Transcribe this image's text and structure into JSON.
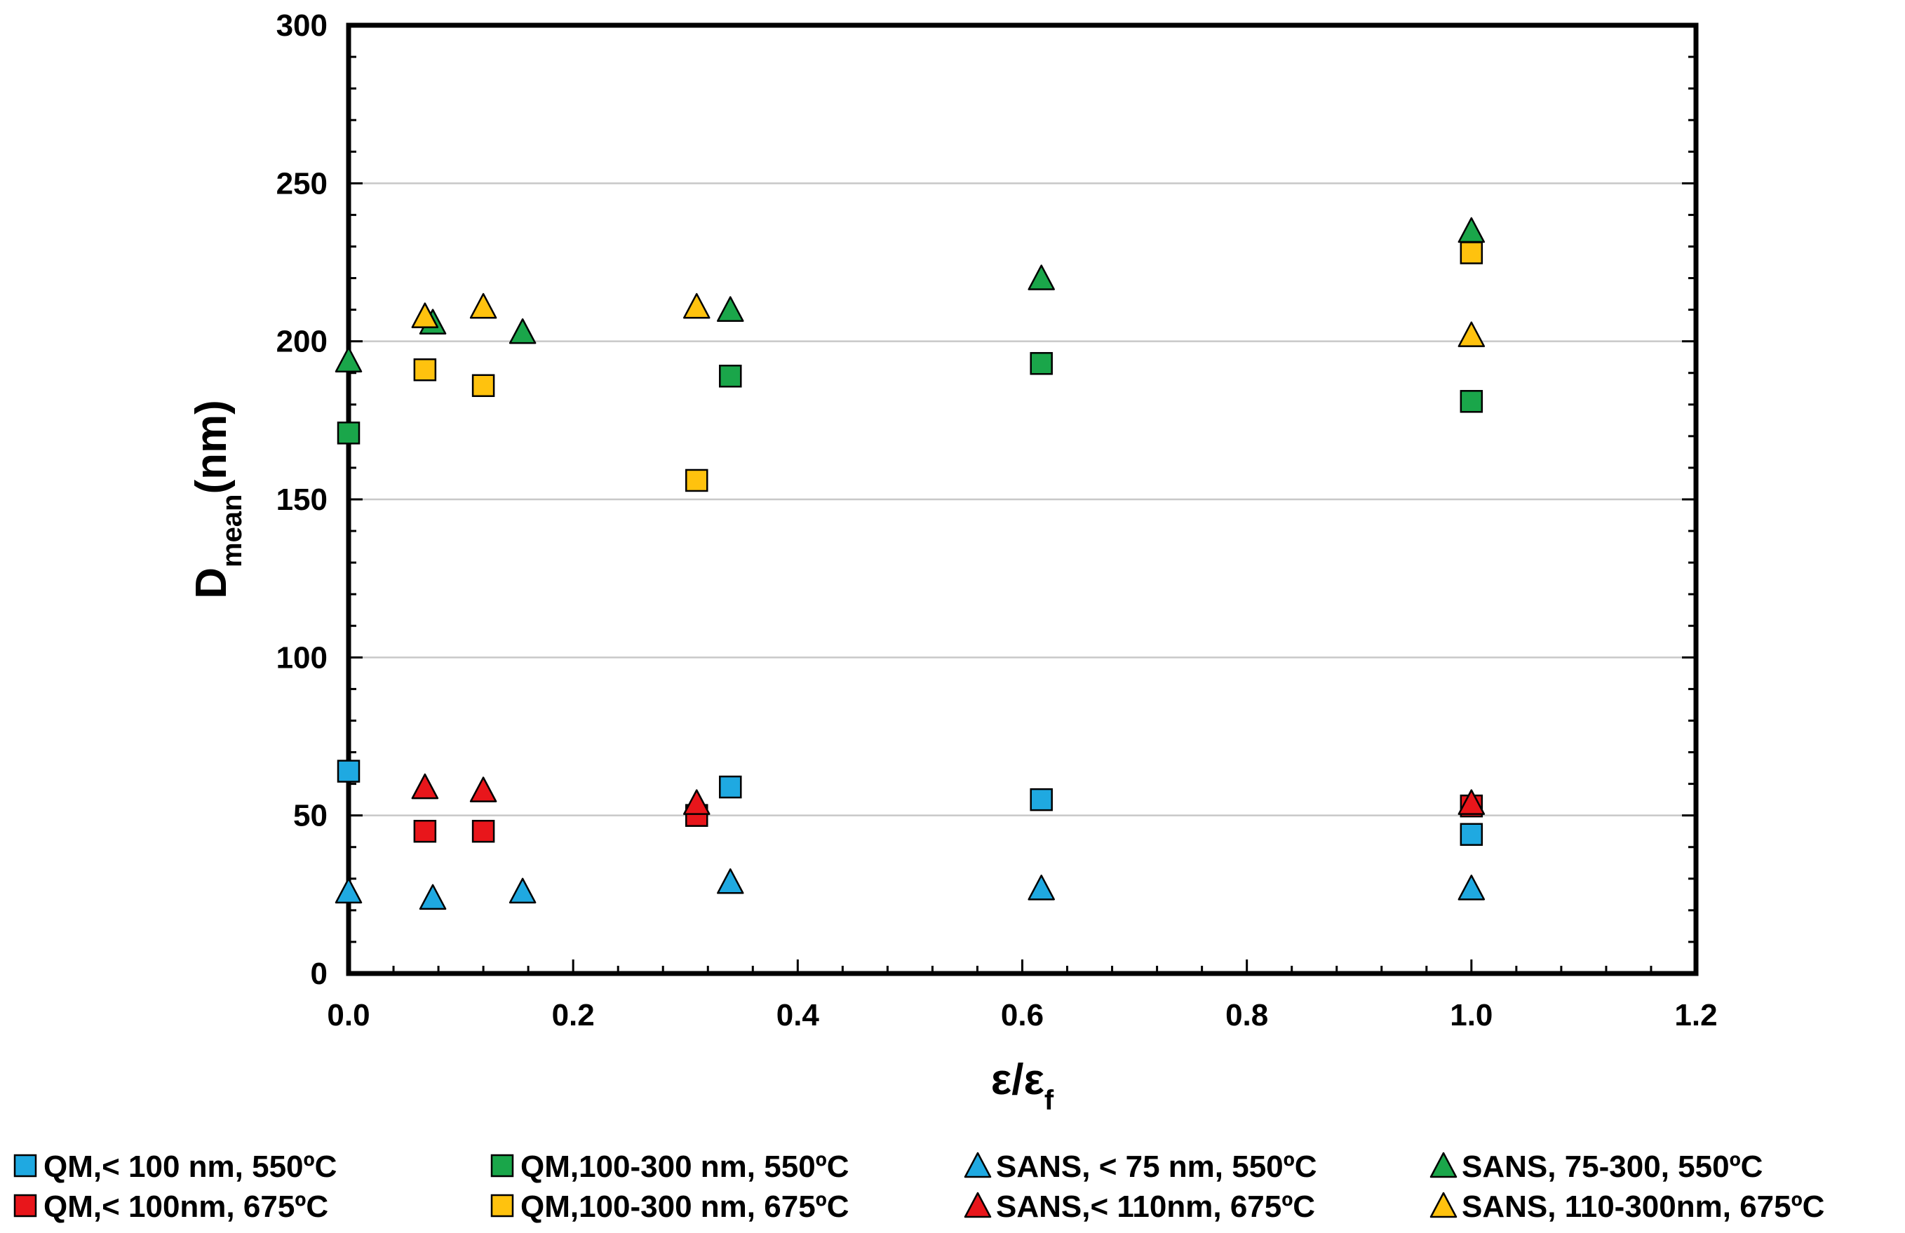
{
  "chart_data": {
    "type": "scatter",
    "title": "",
    "xlabel": {
      "main": "ε/ε",
      "sub": "f"
    },
    "ylabel": {
      "main": "D",
      "sub": "mean",
      "suffix": "(nm)"
    },
    "xlim": [
      0,
      1.2
    ],
    "ylim": [
      0,
      300
    ],
    "x_ticks": [
      0.0,
      0.2,
      0.4,
      0.6,
      0.8,
      1.0,
      1.2
    ],
    "x_tick_labels": [
      "0.0",
      "0.2",
      "0.4",
      "0.6",
      "0.8",
      "1.0",
      "1.2"
    ],
    "y_ticks": [
      0,
      50,
      100,
      150,
      200,
      250,
      300
    ],
    "y_tick_labels": [
      "0",
      "50",
      "100",
      "150",
      "200",
      "250",
      "300"
    ],
    "grid": "horizontal major",
    "legend_position": "bottom",
    "series": [
      {
        "name": "QM,< 100 nm, 550ºC",
        "marker": "square",
        "color": "#1fa9e1",
        "points": [
          [
            0.0,
            64
          ],
          [
            0.34,
            59
          ],
          [
            0.617,
            55
          ],
          [
            1.0,
            44
          ]
        ]
      },
      {
        "name": "QM,100-300 nm, 550ºC",
        "marker": "square",
        "color": "#1aa64a",
        "points": [
          [
            0.0,
            171
          ],
          [
            0.34,
            189
          ],
          [
            0.617,
            193
          ],
          [
            1.0,
            181
          ]
        ]
      },
      {
        "name": "SANS, < 75 nm, 550ºC",
        "marker": "triangle",
        "color": "#1fa9e1",
        "points": [
          [
            0.0,
            26
          ],
          [
            0.075,
            24
          ],
          [
            0.155,
            26
          ],
          [
            0.34,
            29
          ],
          [
            0.617,
            27
          ],
          [
            1.0,
            27
          ]
        ]
      },
      {
        "name": "SANS, 75-300, 550ºC",
        "marker": "triangle",
        "color": "#1aa64a",
        "points": [
          [
            0.0,
            194
          ],
          [
            0.075,
            206
          ],
          [
            0.155,
            203
          ],
          [
            0.34,
            210
          ],
          [
            0.617,
            220
          ],
          [
            1.0,
            235
          ]
        ]
      },
      {
        "name": "QM,< 100nm, 675ºC",
        "marker": "square",
        "color": "#e8161b",
        "points": [
          [
            0.068,
            45
          ],
          [
            0.12,
            45
          ],
          [
            0.31,
            50
          ],
          [
            1.0,
            53
          ]
        ]
      },
      {
        "name": "QM,100-300 nm, 675ºC",
        "marker": "square",
        "color": "#ffc20e",
        "points": [
          [
            0.068,
            191
          ],
          [
            0.12,
            186
          ],
          [
            0.31,
            156
          ],
          [
            1.0,
            228
          ]
        ]
      },
      {
        "name": "SANS,< 110nm, 675ºC",
        "marker": "triangle",
        "color": "#e8161b",
        "points": [
          [
            0.068,
            59
          ],
          [
            0.12,
            58
          ],
          [
            0.31,
            54
          ],
          [
            1.0,
            54
          ]
        ]
      },
      {
        "name": "SANS, 110-300nm, 675ºC",
        "marker": "triangle",
        "color": "#ffc20e",
        "points": [
          [
            0.068,
            208
          ],
          [
            0.12,
            211
          ],
          [
            0.31,
            211
          ],
          [
            1.0,
            202
          ]
        ]
      }
    ]
  }
}
